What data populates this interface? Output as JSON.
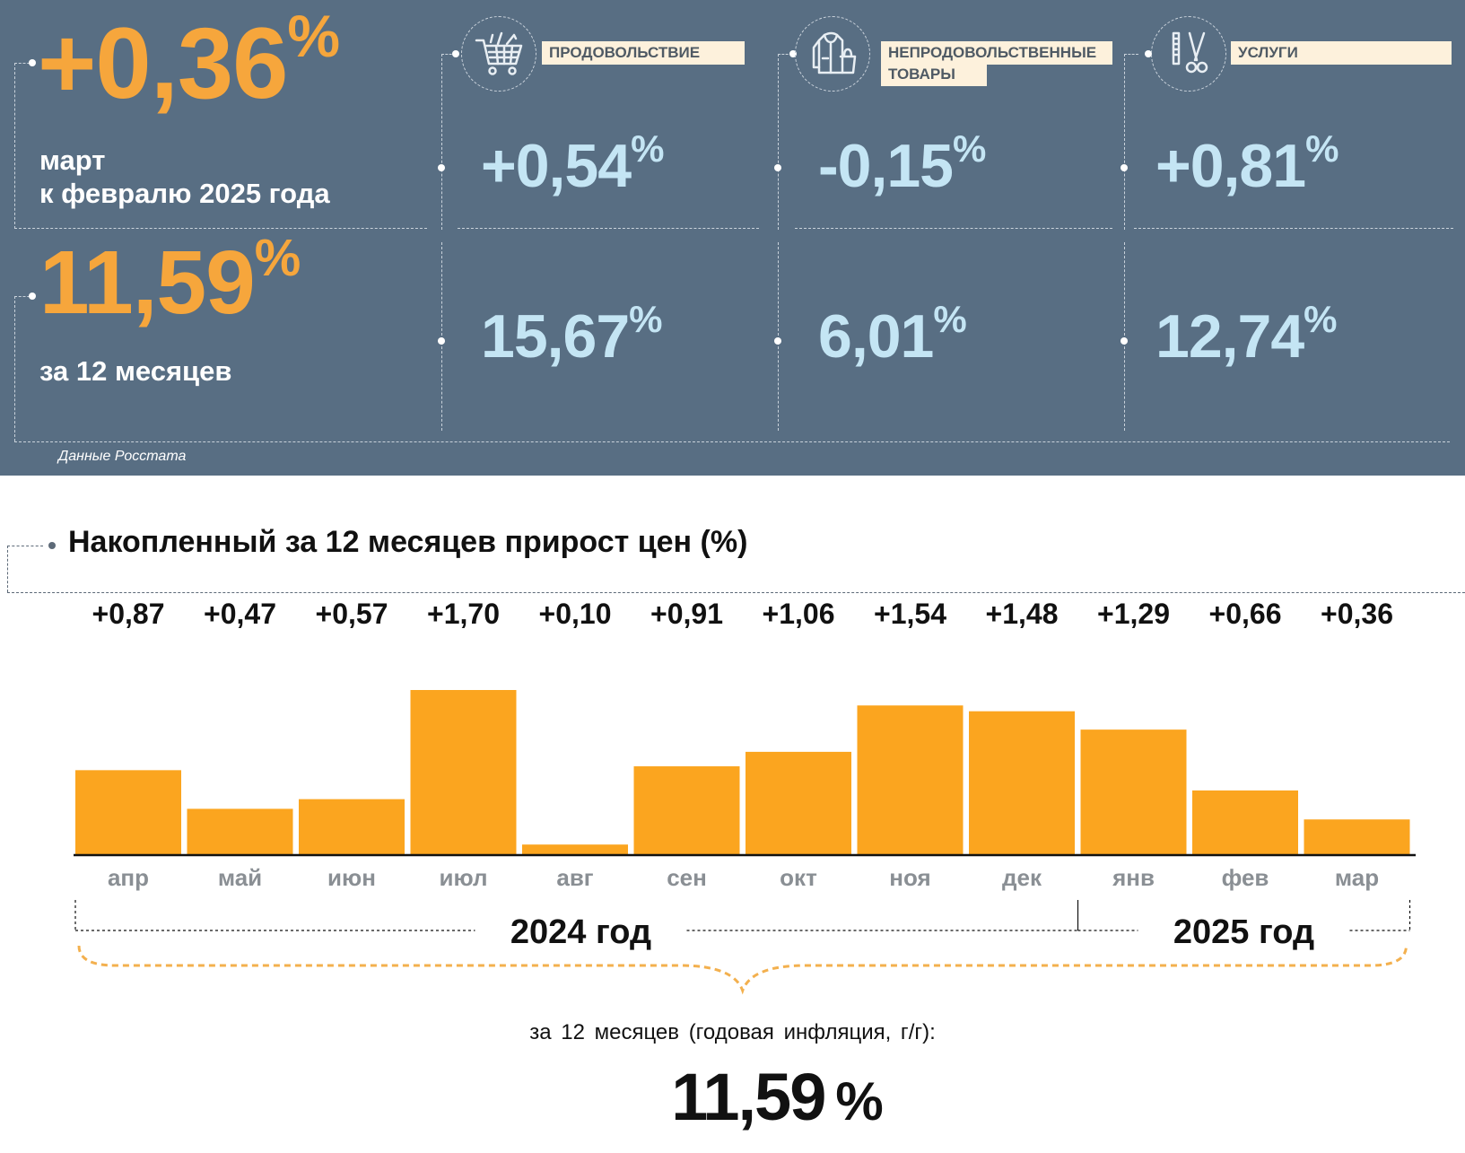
{
  "header": {
    "monthly_value": "+0,36",
    "percent_sign": "%",
    "monthly_label_line1": "март",
    "monthly_label_line2": "к февралю 2025 года",
    "annual_value": "11,59",
    "annual_label": "за 12 месяцев",
    "source": "Данные Росстата"
  },
  "categories": [
    {
      "label": "ПРОДОВОЛЬСТВИЕ",
      "icon": "shopping-cart-icon",
      "monthly": "+0,54",
      "annual": "15,67"
    },
    {
      "label_line1": "НЕПРОДОВОЛЬСТВЕННЫЕ",
      "label_line2": "ТОВАРЫ",
      "icon": "clothing-bag-icon",
      "monthly": "-0,15",
      "annual": "6,01"
    },
    {
      "label": "УСЛУГИ",
      "icon": "scissors-comb-icon",
      "monthly": "+0,81",
      "annual": "12,74"
    }
  ],
  "chart_data": {
    "type": "bar",
    "title": "Накопленный за 12 месяцев прирост цен (%)",
    "categories": [
      "апр",
      "май",
      "июн",
      "июл",
      "авг",
      "сен",
      "окт",
      "ноя",
      "дек",
      "янв",
      "фев",
      "мар"
    ],
    "values": [
      0.87,
      0.47,
      0.57,
      1.7,
      0.1,
      0.91,
      1.06,
      1.54,
      1.48,
      1.29,
      0.66,
      0.36
    ],
    "value_labels": [
      "+0,87",
      "+0,47",
      "+0,57",
      "+1,70",
      "+0,10",
      "+0,91",
      "+1,06",
      "+1,54",
      "+1,48",
      "+1,29",
      "+0,66",
      "+0,36"
    ],
    "year_groups": [
      {
        "label": "2024 год",
        "start": 0,
        "end": 8
      },
      {
        "label": "2025 год",
        "start": 9,
        "end": 11
      }
    ],
    "bar_color": "#fba51f",
    "ylim": [
      0,
      1.7
    ]
  },
  "summary": {
    "caption": "за 12 месяцев (годовая инфляция, г/г):",
    "value": "11,59",
    "percent_sign": "%"
  },
  "colors": {
    "panel_bg": "#586e83",
    "accent_orange": "#f6a63c",
    "value_blue": "#c4e5f4",
    "label_bg": "#fdf1dc"
  }
}
